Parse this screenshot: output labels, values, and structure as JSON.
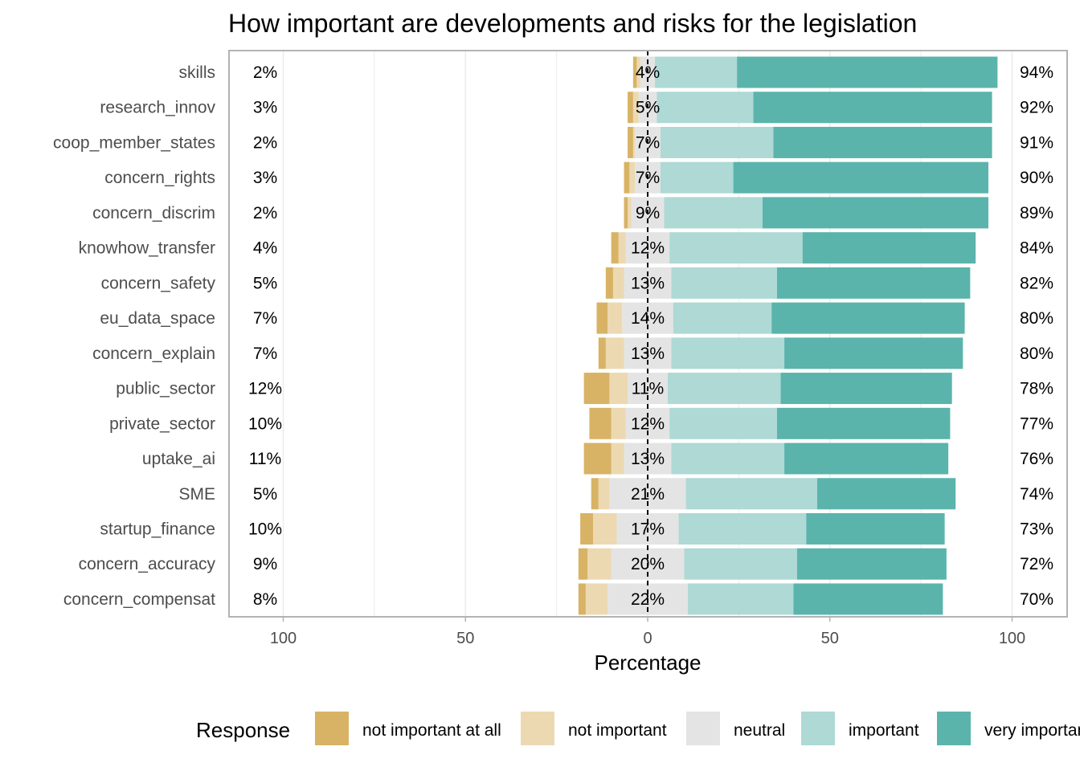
{
  "chart_data": {
    "type": "bar",
    "orientation": "horizontal",
    "layout": "diverging-stacked",
    "title": "How important are developments and risks for the legislation",
    "xlabel": "Percentage",
    "ylabel": "",
    "xlim": [
      -100,
      100
    ],
    "x_ticks": [
      -100,
      -50,
      0,
      50,
      100
    ],
    "x_tick_labels": [
      "100",
      "50",
      "0",
      "50",
      "100"
    ],
    "grid": true,
    "legend": {
      "title": "Response",
      "position": "bottom"
    },
    "categories": [
      "skills",
      "research_innov",
      "coop_member_states",
      "concern_rights",
      "concern_discrim",
      "knowhow_transfer",
      "concern_safety",
      "eu_data_space",
      "concern_explain",
      "public_sector",
      "private_sector",
      "uptake_ai",
      "SME",
      "startup_finance",
      "concern_accuracy",
      "concern_compensat"
    ],
    "series": [
      {
        "name": "not important at all",
        "color": "#d8b365",
        "values": [
          1,
          1.5,
          1.5,
          1.5,
          1,
          2,
          2,
          3,
          2,
          7,
          6,
          7.5,
          2,
          3.5,
          2.5,
          2
        ]
      },
      {
        "name": "not important",
        "color": "#ecd9b2",
        "values": [
          1,
          1.5,
          0.5,
          1.5,
          1,
          2,
          3,
          4,
          5,
          5,
          4,
          3.5,
          3,
          6.5,
          6.5,
          6
        ]
      },
      {
        "name": "neutral",
        "color": "#e4e4e4",
        "values": [
          4,
          5,
          7,
          7,
          9,
          12,
          13,
          14,
          13,
          11,
          12,
          13,
          21,
          17,
          20,
          22
        ]
      },
      {
        "name": "important",
        "color": "#aed9d5",
        "values": [
          22.5,
          26.5,
          31,
          20,
          27,
          36.5,
          29,
          27,
          31,
          31,
          29.5,
          31,
          36,
          35,
          31,
          29
        ]
      },
      {
        "name": "very important",
        "color": "#5ab4ac",
        "values": [
          71.5,
          65.5,
          60,
          70,
          62,
          47.5,
          53,
          53,
          49,
          47,
          47.5,
          45,
          38,
          38,
          41,
          41
        ]
      }
    ],
    "left_labels": [
      "2%",
      "3%",
      "2%",
      "3%",
      "2%",
      "4%",
      "5%",
      "7%",
      "7%",
      "12%",
      "10%",
      "11%",
      "5%",
      "10%",
      "9%",
      "8%"
    ],
    "center_labels": [
      "4%",
      "5%",
      "7%",
      "7%",
      "9%",
      "12%",
      "13%",
      "14%",
      "13%",
      "11%",
      "12%",
      "13%",
      "21%",
      "17%",
      "20%",
      "22%"
    ],
    "right_labels": [
      "94%",
      "92%",
      "91%",
      "90%",
      "89%",
      "84%",
      "82%",
      "80%",
      "80%",
      "78%",
      "77%",
      "76%",
      "74%",
      "73%",
      "72%",
      "70%"
    ]
  }
}
